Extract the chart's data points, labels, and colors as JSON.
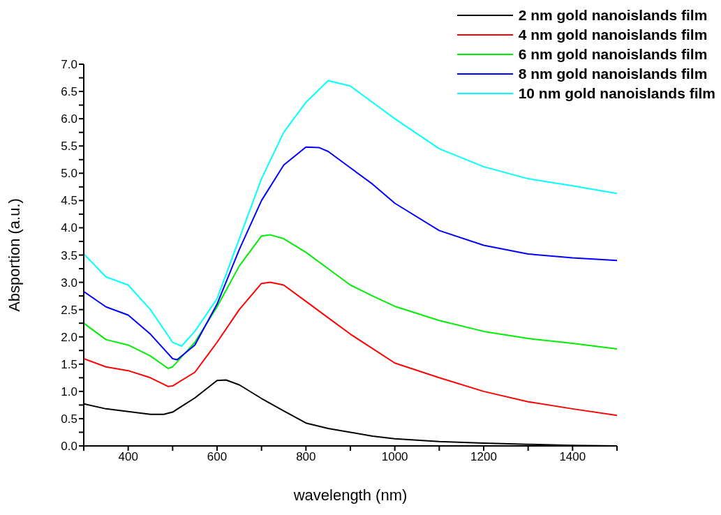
{
  "chart_data": {
    "type": "line",
    "xlabel": "wavelength (nm)",
    "ylabel": "Absportion (a.u.)",
    "xlim": [
      300,
      1500
    ],
    "ylim": [
      0,
      7
    ],
    "xticks": [
      {
        "value": 300,
        "label": null
      },
      400,
      {
        "value": 500,
        "label": null
      },
      600,
      {
        "value": 700,
        "label": null
      },
      800,
      {
        "value": 900,
        "label": null
      },
      1000,
      {
        "value": 1100,
        "label": null
      },
      1200,
      {
        "value": 1300,
        "label": null
      },
      1400,
      {
        "value": 1500,
        "label": null
      }
    ],
    "yticks": [
      {
        "value": 0,
        "label": "0.0"
      },
      {
        "value": 0.25,
        "label": null
      },
      {
        "value": 0.5,
        "label": "0.5"
      },
      {
        "value": 0.75,
        "label": null
      },
      {
        "value": 1,
        "label": "1.0"
      },
      {
        "value": 1.25,
        "label": null
      },
      {
        "value": 1.5,
        "label": "1.5"
      },
      {
        "value": 1.75,
        "label": null
      },
      {
        "value": 2,
        "label": "2.0"
      },
      {
        "value": 2.25,
        "label": null
      },
      {
        "value": 2.5,
        "label": "2.5"
      },
      {
        "value": 2.75,
        "label": null
      },
      {
        "value": 3,
        "label": "3.0"
      },
      {
        "value": 3.25,
        "label": null
      },
      {
        "value": 3.5,
        "label": "3.5"
      },
      {
        "value": 3.75,
        "label": null
      },
      {
        "value": 4,
        "label": "4.0"
      },
      {
        "value": 4.25,
        "label": null
      },
      {
        "value": 4.5,
        "label": "4.5"
      },
      {
        "value": 4.75,
        "label": null
      },
      {
        "value": 5,
        "label": "5.0"
      },
      {
        "value": 5.25,
        "label": null
      },
      {
        "value": 5.5,
        "label": "5.5"
      },
      {
        "value": 5.75,
        "label": null
      },
      {
        "value": 6,
        "label": "6.0"
      },
      {
        "value": 6.25,
        "label": null
      },
      {
        "value": 6.5,
        "label": "6.5"
      },
      {
        "value": 6.75,
        "label": null
      },
      {
        "value": 7,
        "label": "7.0"
      }
    ],
    "grid": false,
    "legend": "top right",
    "marker": "none",
    "line_style": "solid",
    "series": [
      {
        "name": "2 nm gold nanoislands film",
        "color": "#000000",
        "x": [
          300,
          350,
          400,
          450,
          480,
          500,
          550,
          600,
          620,
          650,
          700,
          750,
          800,
          850,
          900,
          950,
          1000,
          1100,
          1200,
          1300,
          1400,
          1500
        ],
        "values": [
          0.77,
          0.68,
          0.63,
          0.58,
          0.58,
          0.62,
          0.88,
          1.2,
          1.21,
          1.12,
          0.87,
          0.64,
          0.42,
          0.32,
          0.25,
          0.18,
          0.13,
          0.08,
          0.05,
          0.03,
          0.01,
          0.0
        ]
      },
      {
        "name": "4 nm gold nanoislands film",
        "color": "#ff0000",
        "x": [
          300,
          350,
          400,
          450,
          490,
          500,
          550,
          600,
          650,
          700,
          720,
          750,
          800,
          850,
          900,
          1000,
          1100,
          1200,
          1300,
          1400,
          1500
        ],
        "values": [
          1.6,
          1.45,
          1.38,
          1.25,
          1.09,
          1.1,
          1.35,
          1.9,
          2.5,
          2.98,
          3.0,
          2.95,
          2.65,
          2.35,
          2.05,
          1.52,
          1.25,
          1.0,
          0.81,
          0.68,
          0.56
        ]
      },
      {
        "name": "6 nm gold nanoislands film",
        "color": "#00ee00",
        "x": [
          300,
          350,
          400,
          450,
          490,
          500,
          550,
          600,
          650,
          700,
          720,
          750,
          800,
          850,
          900,
          950,
          1000,
          1100,
          1200,
          1300,
          1400,
          1500
        ],
        "values": [
          2.25,
          1.95,
          1.85,
          1.65,
          1.42,
          1.45,
          1.9,
          2.55,
          3.3,
          3.85,
          3.87,
          3.8,
          3.55,
          3.25,
          2.95,
          2.75,
          2.56,
          2.3,
          2.1,
          1.97,
          1.88,
          1.78
        ]
      },
      {
        "name": "8 nm gold nanoislands film",
        "color": "#0000ff",
        "x": [
          300,
          350,
          400,
          450,
          500,
          510,
          550,
          600,
          650,
          700,
          750,
          800,
          830,
          850,
          900,
          950,
          1000,
          1100,
          1200,
          1300,
          1400,
          1500
        ],
        "values": [
          2.83,
          2.55,
          2.4,
          2.05,
          1.6,
          1.58,
          1.85,
          2.6,
          3.6,
          4.5,
          5.15,
          5.48,
          5.47,
          5.4,
          5.1,
          4.8,
          4.45,
          3.95,
          3.68,
          3.52,
          3.45,
          3.4
        ]
      },
      {
        "name": "10 nm gold nanoislands film",
        "color": "#00ffff",
        "x": [
          300,
          350,
          400,
          450,
          500,
          520,
          550,
          600,
          650,
          700,
          750,
          800,
          850,
          900,
          950,
          1000,
          1100,
          1200,
          1300,
          1400,
          1500
        ],
        "values": [
          3.52,
          3.1,
          2.95,
          2.5,
          1.9,
          1.83,
          2.1,
          2.7,
          3.8,
          4.9,
          5.75,
          6.3,
          6.7,
          6.6,
          6.3,
          6.0,
          5.45,
          5.12,
          4.9,
          4.77,
          4.63
        ]
      }
    ]
  }
}
